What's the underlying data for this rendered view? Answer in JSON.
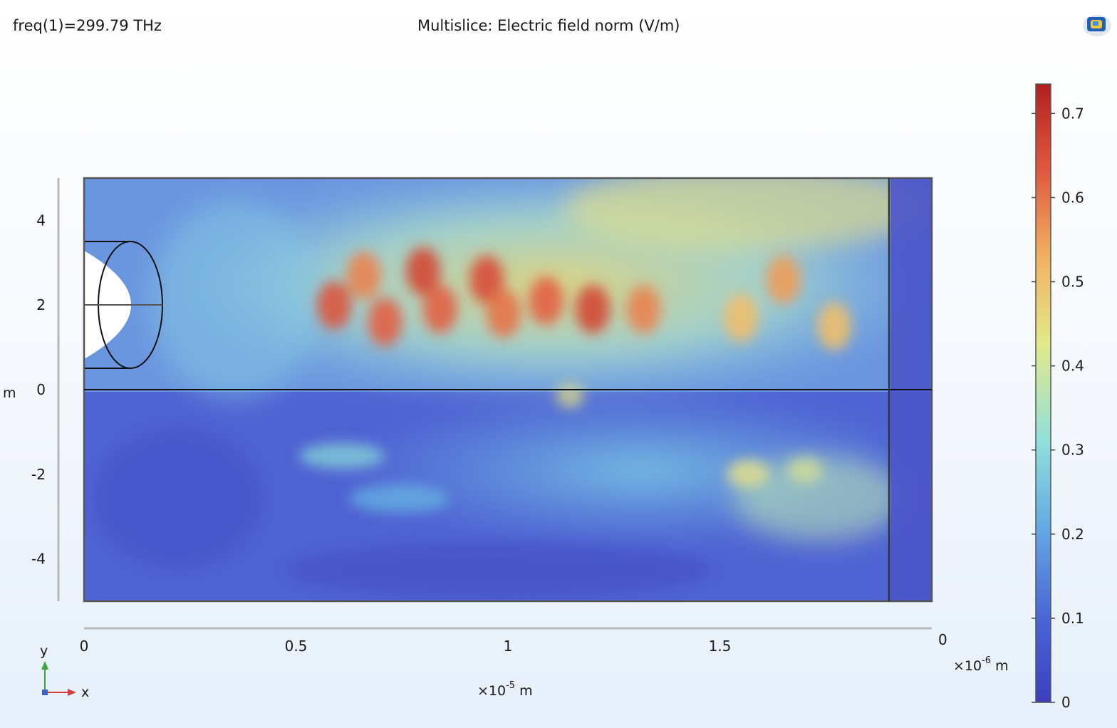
{
  "header": {
    "freq_label": "freq(1)=299.79 THz",
    "title": "Multislice: Electric field norm (V/m)"
  },
  "icons": {
    "logo": "comsol-logo-icon"
  },
  "colors": {
    "background": "#eef4fb",
    "frame": "#4a4a4a",
    "lens_fill": "#ffffff",
    "colormap": [
      "#3b3fbf",
      "#4a67d6",
      "#63a8e4",
      "#8fe0dc",
      "#e3e98a",
      "#f2b163",
      "#e0593e",
      "#b2201f"
    ]
  },
  "chart_data": {
    "type": "heatmap",
    "title": "Multislice: Electric field norm (V/m)",
    "subtitle": "freq(1)=299.79 THz",
    "x_axis": {
      "ticks": [
        "0",
        "0.5",
        "1",
        "1.5"
      ],
      "tick_values": [
        0,
        0.5,
        1,
        1.5
      ],
      "multiplier_base": "×10",
      "multiplier_exp": "-5",
      "unit": "m",
      "range": [
        0,
        2
      ]
    },
    "y_axis": {
      "ticks": [
        "4",
        "2",
        "0",
        "-2",
        "-4"
      ],
      "tick_values": [
        4,
        2,
        0,
        -2,
        -4
      ],
      "unit": "m",
      "range": [
        -5,
        5
      ]
    },
    "z_axis": {
      "tick": "0",
      "multiplier_base": "×10",
      "multiplier_exp": "-6",
      "unit": "m"
    },
    "colorbar": {
      "ticks": [
        "0.7",
        "0.6",
        "0.5",
        "0.4",
        "0.3",
        "0.2",
        "0.1",
        "0"
      ],
      "tick_values": [
        0.7,
        0.6,
        0.5,
        0.4,
        0.3,
        0.2,
        0.1,
        0
      ],
      "range": [
        0,
        0.735
      ]
    },
    "hotspots": [
      {
        "x": 0.59,
        "y": 2.0,
        "value": 0.64
      },
      {
        "x": 0.66,
        "y": 2.7,
        "value": 0.58
      },
      {
        "x": 0.71,
        "y": 1.6,
        "value": 0.62
      },
      {
        "x": 0.8,
        "y": 2.8,
        "value": 0.66
      },
      {
        "x": 0.84,
        "y": 1.9,
        "value": 0.62
      },
      {
        "x": 0.95,
        "y": 2.6,
        "value": 0.65
      },
      {
        "x": 0.99,
        "y": 1.8,
        "value": 0.6
      },
      {
        "x": 1.09,
        "y": 2.1,
        "value": 0.62
      },
      {
        "x": 1.2,
        "y": 1.9,
        "value": 0.66
      },
      {
        "x": 1.32,
        "y": 1.9,
        "value": 0.58
      },
      {
        "x": 1.65,
        "y": 2.6,
        "value": 0.55
      },
      {
        "x": 1.55,
        "y": 1.7,
        "value": 0.5
      },
      {
        "x": 1.77,
        "y": 1.5,
        "value": 0.5
      }
    ],
    "axis_indicator": {
      "x_label": "x",
      "y_label": "y"
    }
  }
}
